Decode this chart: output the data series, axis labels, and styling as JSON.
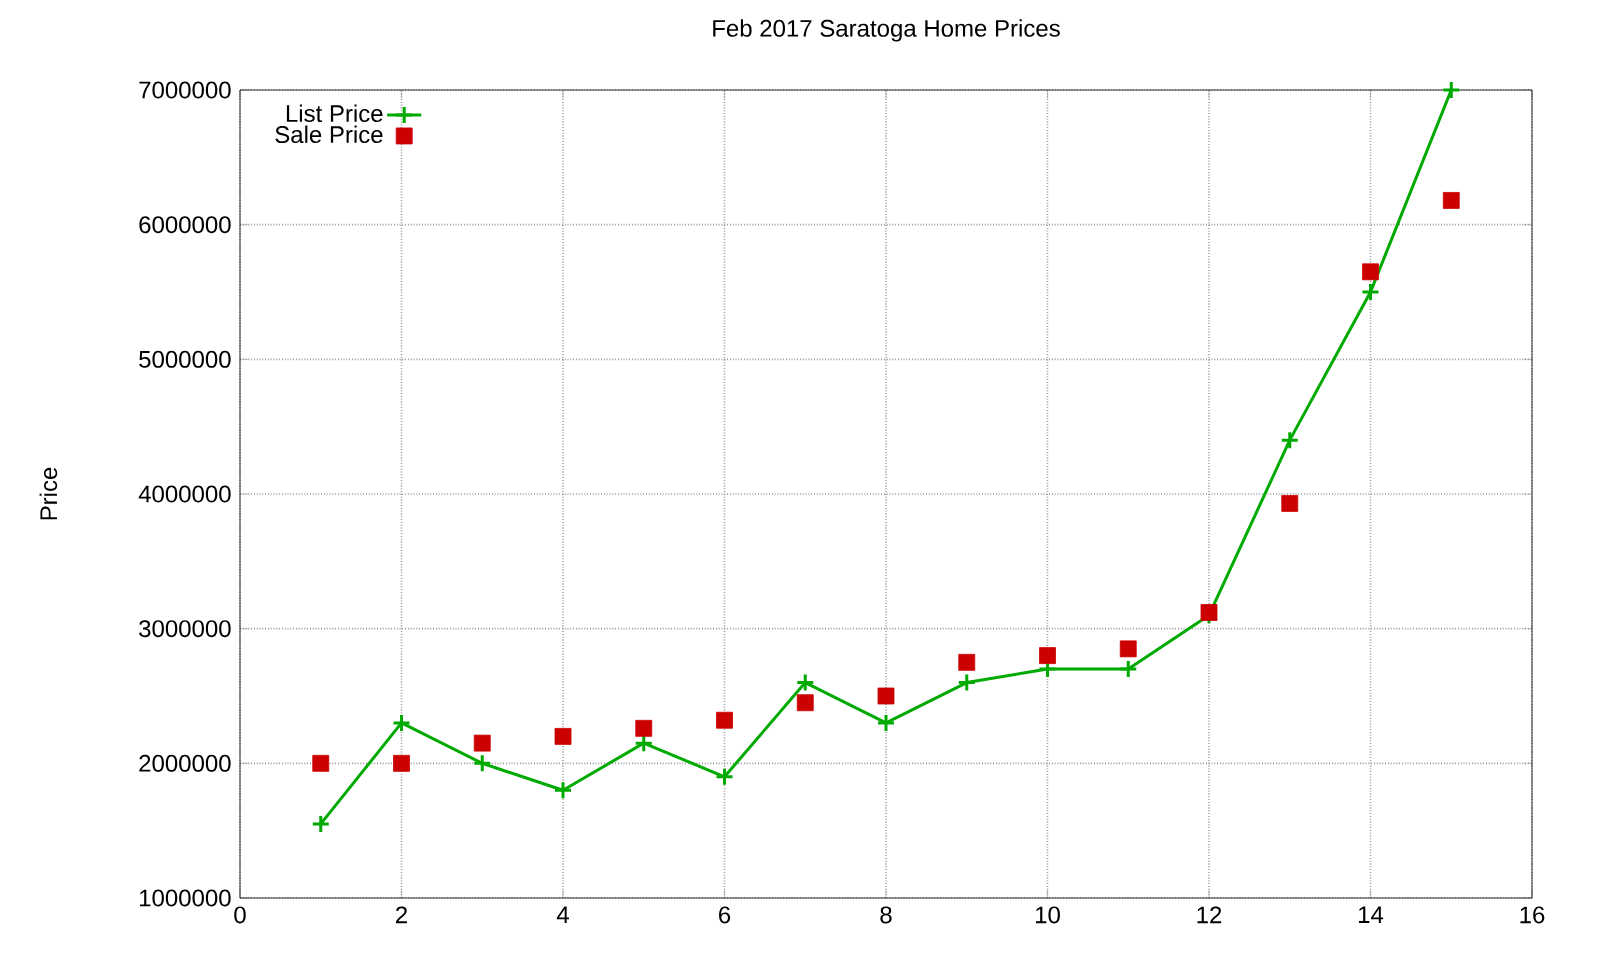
{
  "chart_data": {
    "type": "line",
    "title": "Feb 2017 Saratoga Home Prices",
    "ylabel": "Price",
    "x": [
      1,
      2,
      3,
      4,
      5,
      6,
      7,
      8,
      9,
      10,
      11,
      12,
      13,
      14,
      15
    ],
    "series": [
      {
        "name": "List Price",
        "color": "#00aa00",
        "marker": "cross",
        "values": [
          1550000,
          2300000,
          2000000,
          1800000,
          2150000,
          1900000,
          2600000,
          2300000,
          2600000,
          2700000,
          2700000,
          3100000,
          4400000,
          5500000,
          7000000
        ]
      },
      {
        "name": "Sale Price",
        "type": "scatter",
        "color": "#cc0000",
        "marker": "square",
        "values": [
          2000000,
          2000000,
          2150000,
          2200000,
          2260000,
          2320000,
          2450000,
          2500000,
          2750000,
          2800000,
          2850000,
          3120000,
          3930000,
          5650000,
          6180000
        ]
      }
    ],
    "xlim": [
      0,
      16
    ],
    "xticks": [
      0,
      2,
      4,
      6,
      8,
      10,
      12,
      14,
      16
    ],
    "ylim": [
      1000000,
      7000000
    ],
    "yticks": [
      1000000,
      2000000,
      3000000,
      4000000,
      5000000,
      6000000,
      7000000
    ],
    "grid": true,
    "legend": "top left"
  }
}
